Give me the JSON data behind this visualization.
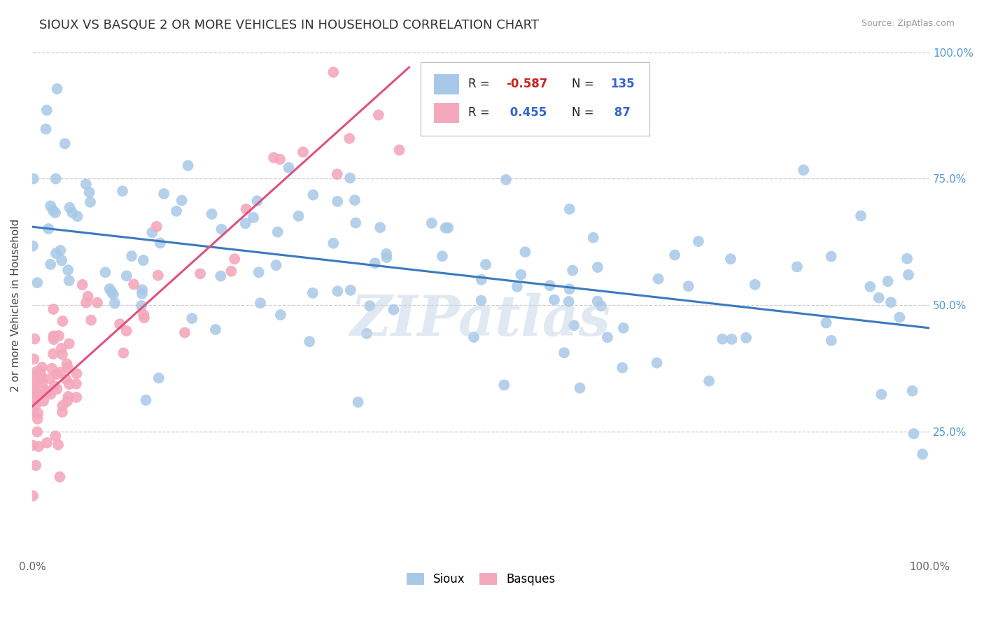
{
  "title": "SIOUX VS BASQUE 2 OR MORE VEHICLES IN HOUSEHOLD CORRELATION CHART",
  "source_text": "Source: ZipAtlas.com",
  "ylabel": "2 or more Vehicles in Household",
  "xlim": [
    0.0,
    1.0
  ],
  "ylim": [
    0.0,
    1.0
  ],
  "sioux_color": "#a8c8e8",
  "basque_color": "#f4a8bc",
  "sioux_line_color": "#3a7abf",
  "basque_line_color": "#e05080",
  "sioux_R": -0.587,
  "sioux_N": 135,
  "basque_R": 0.455,
  "basque_N": 87,
  "legend_R_neg_color": "#cc2222",
  "legend_R_pos_color": "#3366cc",
  "legend_N_color": "#3366cc",
  "watermark": "ZIPatlas",
  "background_color": "#ffffff",
  "grid_color": "#cccccc",
  "title_fontsize": 13,
  "sioux_line_start_y": 0.655,
  "sioux_line_end_y": 0.455,
  "basque_line_start_x": 0.0,
  "basque_line_start_y": 0.3,
  "basque_line_end_x": 0.42,
  "basque_line_end_y": 0.97
}
